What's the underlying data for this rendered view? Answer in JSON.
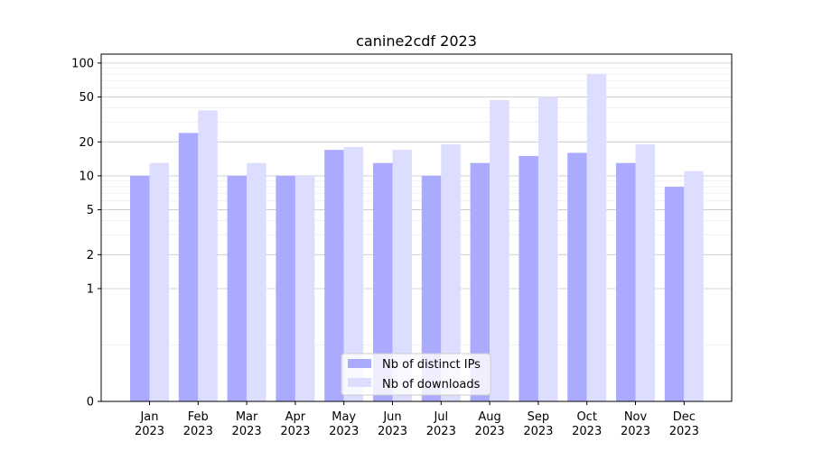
{
  "chart_data": {
    "type": "bar",
    "title": "canine2cdf 2023",
    "xlabel": "",
    "ylabel": "",
    "yscale": "symlog",
    "ylim": [
      0,
      120
    ],
    "yticks": [
      0,
      1,
      2,
      5,
      10,
      20,
      50,
      100
    ],
    "ytick_labels": [
      "0",
      "1",
      "2",
      "5",
      "10",
      "20",
      "50",
      "100"
    ],
    "grid": true,
    "legend_position": "bottom-center",
    "categories": [
      "Jan\n2023",
      "Feb\n2023",
      "Mar\n2023",
      "Apr\n2023",
      "May\n2023",
      "Jun\n2023",
      "Jul\n2023",
      "Aug\n2023",
      "Sep\n2023",
      "Oct\n2023",
      "Nov\n2023",
      "Dec\n2023"
    ],
    "series": [
      {
        "name": "Nb of distinct IPs",
        "color": "#aaaaff",
        "values": [
          10,
          24,
          10,
          10,
          17,
          13,
          10,
          13,
          15,
          16,
          13,
          8
        ]
      },
      {
        "name": "Nb of downloads",
        "color": "#ddddff",
        "values": [
          13,
          38,
          13,
          10,
          18,
          17,
          19,
          47,
          50,
          80,
          19,
          11
        ]
      }
    ]
  }
}
